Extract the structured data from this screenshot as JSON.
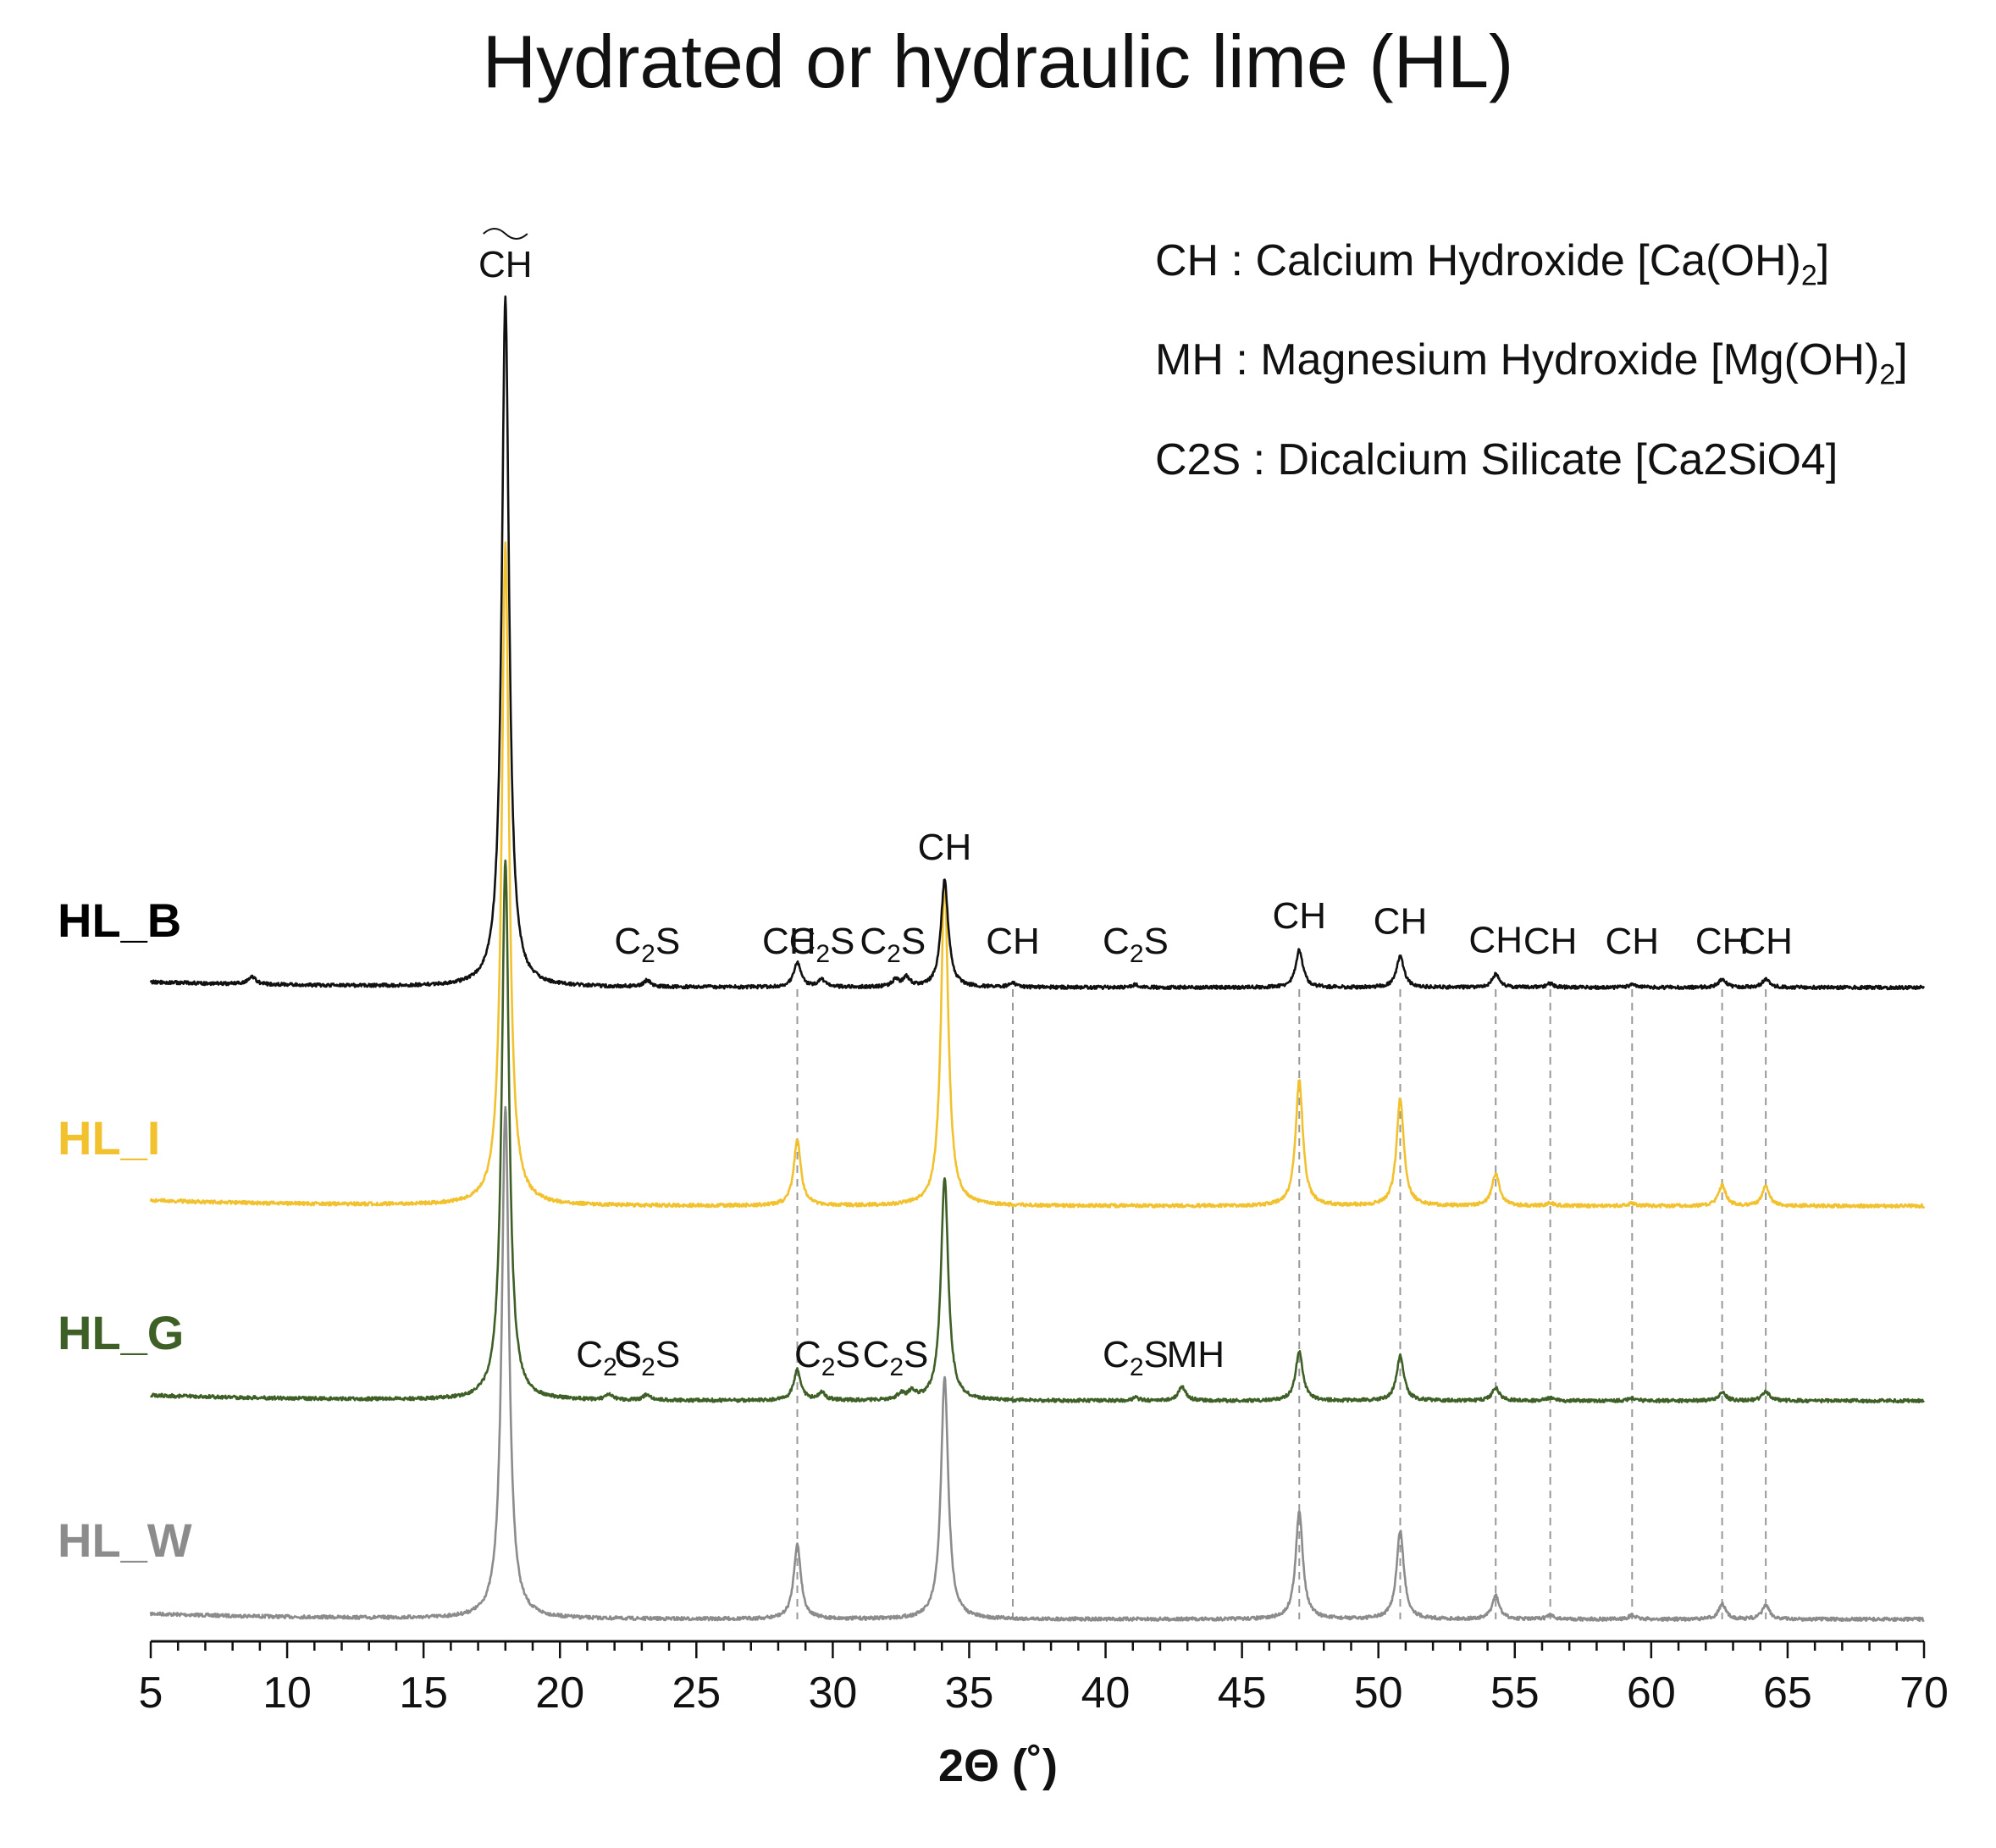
{
  "chart_data": {
    "type": "line",
    "title": "Hydrated or hydraulic lime (HL)",
    "xlabel": "2Θ (˚)",
    "ylabel": "",
    "xlim": [
      5,
      70
    ],
    "xticks": [
      5,
      10,
      15,
      20,
      25,
      30,
      35,
      40,
      45,
      50,
      55,
      60,
      65,
      70
    ],
    "grid": false,
    "legend_position": "top-right",
    "legend": [
      {
        "abbr": "CH",
        "sep": " : ",
        "text": "Calcium Hydroxide [Ca(OH)",
        "sub": "2",
        "tail": "]"
      },
      {
        "abbr": "MH",
        "sep": " : ",
        "text": "Magnesium Hydroxide [Mg(OH)",
        "sub": "2",
        "tail": "]"
      },
      {
        "abbr": "C2S",
        "sep": " : ",
        "text": "Dicalcium Silicate [Ca2SiO4]"
      }
    ],
    "series": [
      {
        "name": "HL_B",
        "color": "#111111",
        "label_color": "#000000",
        "baseline": 0.0,
        "peaks": [
          [
            8.7,
            0.9
          ],
          [
            18.0,
            74
          ],
          [
            23.2,
            0.7
          ],
          [
            28.7,
            2.6
          ],
          [
            29.6,
            0.8
          ],
          [
            32.3,
            0.7
          ],
          [
            32.7,
            1.0
          ],
          [
            34.1,
            11.5
          ],
          [
            36.6,
            0.4
          ],
          [
            41.1,
            0.3
          ],
          [
            47.1,
            4.0
          ],
          [
            50.8,
            3.4
          ],
          [
            54.3,
            1.4
          ],
          [
            56.3,
            0.4
          ],
          [
            59.3,
            0.3
          ],
          [
            62.6,
            0.9
          ],
          [
            64.2,
            0.9
          ]
        ]
      },
      {
        "name": "HL_I",
        "color": "#F2C12E",
        "label_color": "#F2C12E",
        "baseline": 0.0,
        "peaks": [
          [
            18.0,
            71
          ],
          [
            28.7,
            7
          ],
          [
            34.1,
            35
          ],
          [
            47.1,
            13.5
          ],
          [
            50.8,
            11.5
          ],
          [
            54.3,
            3.5
          ],
          [
            56.3,
            0.3
          ],
          [
            59.3,
            0.3
          ],
          [
            62.6,
            2.2
          ],
          [
            64.2,
            2.1
          ]
        ]
      },
      {
        "name": "HL_G",
        "color": "#3E5F26",
        "label_color": "#3E5F26",
        "baseline": 0.0,
        "peaks": [
          [
            18.0,
            58
          ],
          [
            21.8,
            0.5
          ],
          [
            23.2,
            0.6
          ],
          [
            28.7,
            3.3
          ],
          [
            29.6,
            0.8
          ],
          [
            32.5,
            0.6
          ],
          [
            32.9,
            0.8
          ],
          [
            34.1,
            24
          ],
          [
            41.1,
            0.3
          ],
          [
            42.8,
            1.5
          ],
          [
            47.1,
            5.3
          ],
          [
            50.8,
            4.8
          ],
          [
            54.3,
            1.4
          ],
          [
            56.3,
            0.3
          ],
          [
            59.3,
            0.3
          ],
          [
            62.6,
            0.9
          ],
          [
            64.2,
            1.0
          ]
        ]
      },
      {
        "name": "HL_W",
        "color": "#8C8C8C",
        "label_color": "#8C8C8C",
        "baseline": 0.0,
        "peaks": [
          [
            18.0,
            55
          ],
          [
            28.7,
            8
          ],
          [
            34.1,
            26
          ],
          [
            47.1,
            11.5
          ],
          [
            50.8,
            9.5
          ],
          [
            54.3,
            2.5
          ],
          [
            56.3,
            0.4
          ],
          [
            59.3,
            0.4
          ],
          [
            62.6,
            1.6
          ],
          [
            64.2,
            1.5
          ]
        ]
      }
    ],
    "reference_lines": [
      28.7,
      36.6,
      47.1,
      50.8,
      54.3,
      56.3,
      59.3,
      62.6,
      64.2
    ],
    "annotations": [
      {
        "text": "CH",
        "x": 18.0,
        "series": "HL_B",
        "top": true
      },
      {
        "text": "CH",
        "x": 34.1,
        "series": "HL_B",
        "top": true
      },
      {
        "text": "CH",
        "x": 28.4,
        "series": "HL_B"
      },
      {
        "text": "C2S",
        "x": 23.2,
        "series": "HL_B"
      },
      {
        "text": "C2S",
        "x": 29.6,
        "series": "HL_B"
      },
      {
        "text": "C2S",
        "x": 32.2,
        "series": "HL_B"
      },
      {
        "text": "CH",
        "x": 36.6,
        "series": "HL_B"
      },
      {
        "text": "C2S",
        "x": 41.1,
        "series": "HL_B"
      },
      {
        "text": "CH",
        "x": 47.1,
        "series": "HL_B"
      },
      {
        "text": "CH",
        "x": 50.8,
        "series": "HL_B"
      },
      {
        "text": "CH",
        "x": 54.3,
        "series": "HL_B"
      },
      {
        "text": "CH",
        "x": 56.3,
        "series": "HL_B"
      },
      {
        "text": "CH",
        "x": 59.3,
        "series": "HL_B"
      },
      {
        "text": "CH",
        "x": 62.6,
        "series": "HL_B"
      },
      {
        "text": "CH",
        "x": 64.2,
        "series": "HL_B"
      },
      {
        "text": "C2S",
        "x": 21.8,
        "series": "HL_G"
      },
      {
        "text": "C2S",
        "x": 23.2,
        "series": "HL_G"
      },
      {
        "text": "C2S",
        "x": 29.8,
        "series": "HL_G"
      },
      {
        "text": "C2S",
        "x": 32.3,
        "series": "HL_G"
      },
      {
        "text": "C2S",
        "x": 41.1,
        "series": "HL_G"
      },
      {
        "text": "MH",
        "x": 43.3,
        "series": "HL_G"
      }
    ]
  }
}
